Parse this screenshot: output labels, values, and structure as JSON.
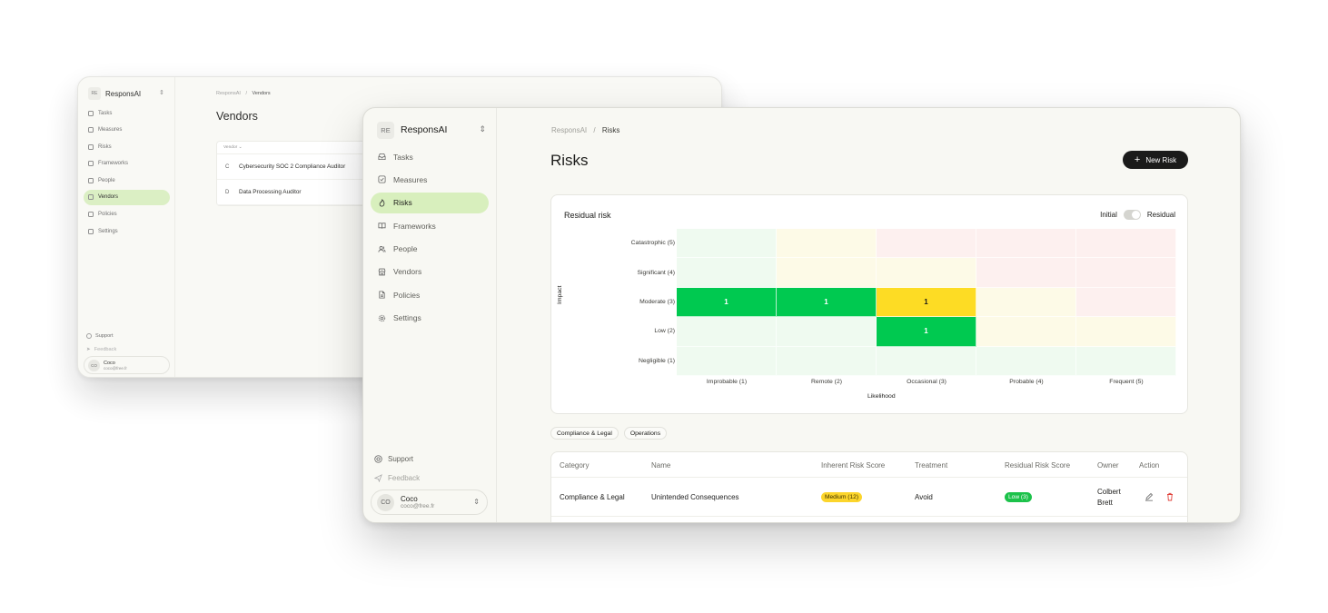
{
  "back_window": {
    "org": {
      "initials": "RE",
      "name": "ResponsAI"
    },
    "nav": [
      "Tasks",
      "Measures",
      "Risks",
      "Frameworks",
      "People",
      "Vendors",
      "Policies",
      "Settings"
    ],
    "active_nav": "Vendors",
    "footer": {
      "support": "Support",
      "feedback": "Feedback"
    },
    "user": {
      "initials": "CO",
      "name": "Coco",
      "email": "coco@free.fr"
    },
    "breadcrumb": {
      "root": "ResponsAI",
      "sep": "/",
      "current": "Vendors"
    },
    "title": "Vendors",
    "table": {
      "header": "Vendor",
      "rows": [
        {
          "letter": "C",
          "name": "Cybersecurity SOC 2 Compliance Auditor"
        },
        {
          "letter": "D",
          "name": "Data Processing Auditor"
        }
      ]
    }
  },
  "org": {
    "initials": "RE",
    "name": "ResponsAI"
  },
  "nav": {
    "items": [
      {
        "label": "Tasks",
        "icon": "inbox-icon"
      },
      {
        "label": "Measures",
        "icon": "checkbox-icon"
      },
      {
        "label": "Risks",
        "icon": "flame-icon"
      },
      {
        "label": "Frameworks",
        "icon": "book-icon"
      },
      {
        "label": "People",
        "icon": "users-icon"
      },
      {
        "label": "Vendors",
        "icon": "store-icon"
      },
      {
        "label": "Policies",
        "icon": "file-icon"
      },
      {
        "label": "Settings",
        "icon": "gear-icon"
      }
    ],
    "active": "Risks"
  },
  "footer": {
    "support": "Support",
    "feedback": "Feedback"
  },
  "user": {
    "initials": "CO",
    "name": "Coco",
    "email": "coco@free.fr"
  },
  "breadcrumb": {
    "root": "ResponsAI",
    "sep": "/",
    "current": "Risks"
  },
  "page_title": "Risks",
  "new_button": "New Risk",
  "matrix": {
    "title": "Residual risk",
    "toggle": {
      "left": "Initial",
      "right": "Residual",
      "selected": "Residual"
    },
    "impact_label": "Impact",
    "likelihood_label": "Likelihood",
    "impact_levels": [
      "Catastrophic (5)",
      "Significant (4)",
      "Moderate (3)",
      "Low (2)",
      "Negligible (1)"
    ],
    "likelihood_levels": [
      "Improbable (1)",
      "Remote (2)",
      "Occasional (3)",
      "Probable (4)",
      "Frequent (5)"
    ],
    "cells": [
      [
        "",
        "",
        "",
        "",
        ""
      ],
      [
        "",
        "",
        "",
        "",
        ""
      ],
      [
        "1",
        "1",
        "1",
        "",
        ""
      ],
      [
        "",
        "",
        "1",
        "",
        ""
      ],
      [
        "",
        "",
        "",
        "",
        ""
      ]
    ],
    "zone_colors": [
      [
        "#effaf0",
        "#fdfae7",
        "#fdf0ef",
        "#fdf0ef",
        "#fdf0ef"
      ],
      [
        "#effaf0",
        "#fdfae7",
        "#fdfae7",
        "#fdf0ef",
        "#fdf0ef"
      ],
      [
        "#00c950",
        "#00c950",
        "#fddc24",
        "#fdfae7",
        "#fdf0ef"
      ],
      [
        "#effaf0",
        "#effaf0",
        "#00c950",
        "#fdfae7",
        "#fdfae7"
      ],
      [
        "#effaf0",
        "#effaf0",
        "#effaf0",
        "#effaf0",
        "#effaf0"
      ]
    ]
  },
  "filters": [
    "Compliance & Legal",
    "Operations"
  ],
  "table": {
    "columns": [
      "Category",
      "Name",
      "Inherent Risk Score",
      "Treatment",
      "Residual Risk Score",
      "Owner",
      "Action"
    ],
    "rows": [
      {
        "category": "Compliance & Legal",
        "name": "Unintended Consequences",
        "inherent": "Medium (12)",
        "treatment": "Avoid",
        "residual": "Low (3)",
        "owner_first": "Colbert",
        "owner_last": "Brett"
      }
    ]
  }
}
